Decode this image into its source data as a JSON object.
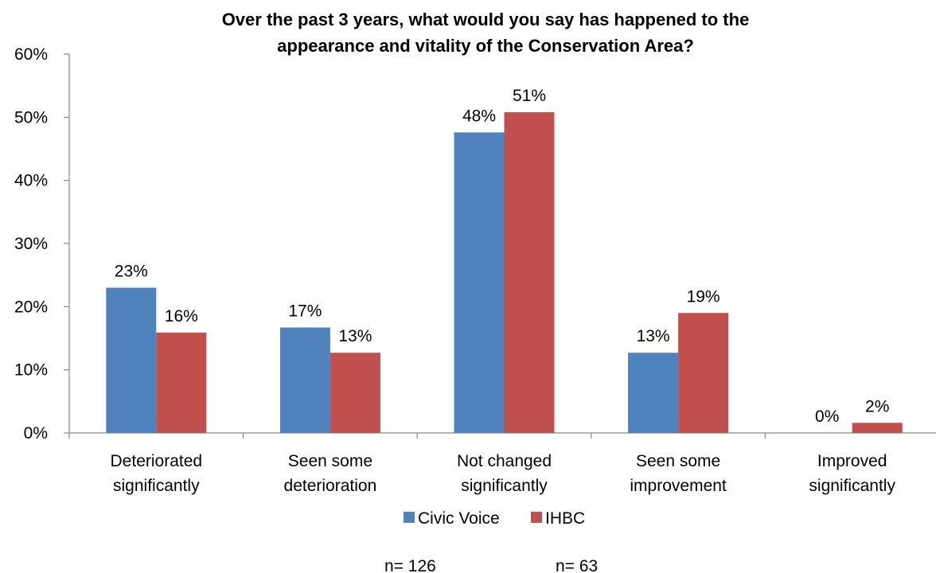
{
  "chart_data": {
    "type": "bar",
    "title_lines": [
      "Over the past 3 years, what would you say has happened to the",
      "appearance and vitality of the Conservation Area?"
    ],
    "categories": [
      [
        "Deteriorated",
        "significantly"
      ],
      [
        "Seen some",
        "deterioration"
      ],
      [
        "Not changed",
        "significantly"
      ],
      [
        "Seen some",
        "improvement"
      ],
      [
        "Improved",
        "significantly"
      ]
    ],
    "series": [
      {
        "name": "Civic Voice",
        "color": "#4F81BD",
        "values": [
          23,
          16.7,
          47.6,
          12.7,
          0
        ],
        "labels": [
          "23%",
          "17%",
          "48%",
          "13%",
          "0%"
        ]
      },
      {
        "name": "IHBC",
        "color": "#C0504D",
        "values": [
          15.9,
          12.7,
          50.8,
          19.0,
          1.6
        ],
        "labels": [
          "16%",
          "13%",
          "51%",
          "19%",
          "2%"
        ]
      }
    ],
    "y_ticks": [
      "0%",
      "10%",
      "20%",
      "30%",
      "40%",
      "50%",
      "60%"
    ],
    "ylim": [
      0,
      60
    ],
    "legend_position": "bottom",
    "grid": false,
    "notes": [
      "n= 126",
      "n= 63"
    ]
  }
}
